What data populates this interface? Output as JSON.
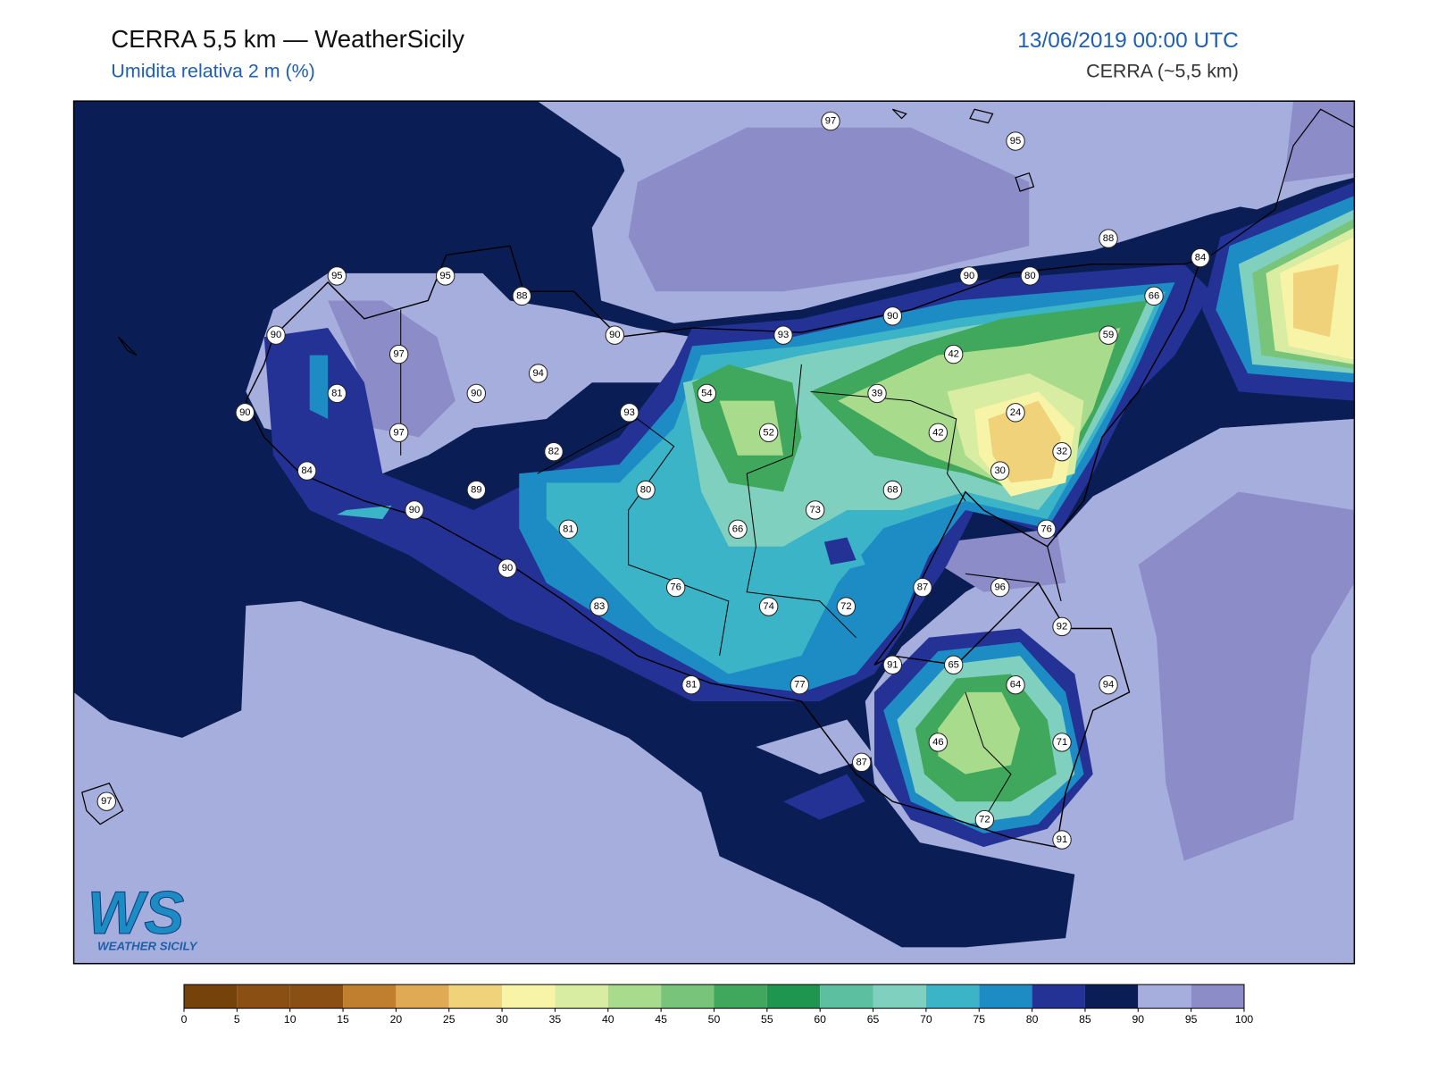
{
  "header": {
    "title": "CERRA 5,5 km — WeatherSicily",
    "subtitle": "Umidita relativa 2 m (%)",
    "datetime": "13/06/2019 00:00 UTC",
    "source": "CERRA (~5,5 km)"
  },
  "stations": [
    97,
    95,
    88,
    84,
    95,
    95,
    88,
    90,
    80,
    66,
    90,
    90,
    93,
    90,
    59,
    97,
    94,
    42,
    81,
    90,
    54,
    39,
    90,
    93,
    24,
    97,
    52,
    42,
    82,
    32,
    84,
    30,
    89,
    80,
    68,
    90,
    73,
    81,
    66,
    76,
    90,
    87,
    96,
    76,
    83,
    74,
    72,
    92,
    91,
    65,
    81,
    77,
    64,
    94,
    46,
    71,
    87,
    97,
    72,
    91
  ],
  "colorbar": {
    "ticks": [
      0,
      5,
      10,
      15,
      20,
      25,
      30,
      35,
      40,
      45,
      50,
      55,
      60,
      65,
      70,
      75,
      80,
      85,
      90,
      95,
      100
    ],
    "colors": [
      "#76420b",
      "#8a4f12",
      "#8a4f12",
      "#bf7f2e",
      "#e0aa55",
      "#f0d27a",
      "#f7f4a8",
      "#d8eca2",
      "#a8dc8c",
      "#78c47a",
      "#40a85c",
      "#1e9650",
      "#5cbfa0",
      "#80d0c0",
      "#3cb4c8",
      "#1e8cc4",
      "#243296",
      "#0a1e55",
      "#a5aedc",
      "#8c8cc8"
    ]
  },
  "logo": {
    "mark": "WS",
    "name": "WEATHER SICILY"
  }
}
